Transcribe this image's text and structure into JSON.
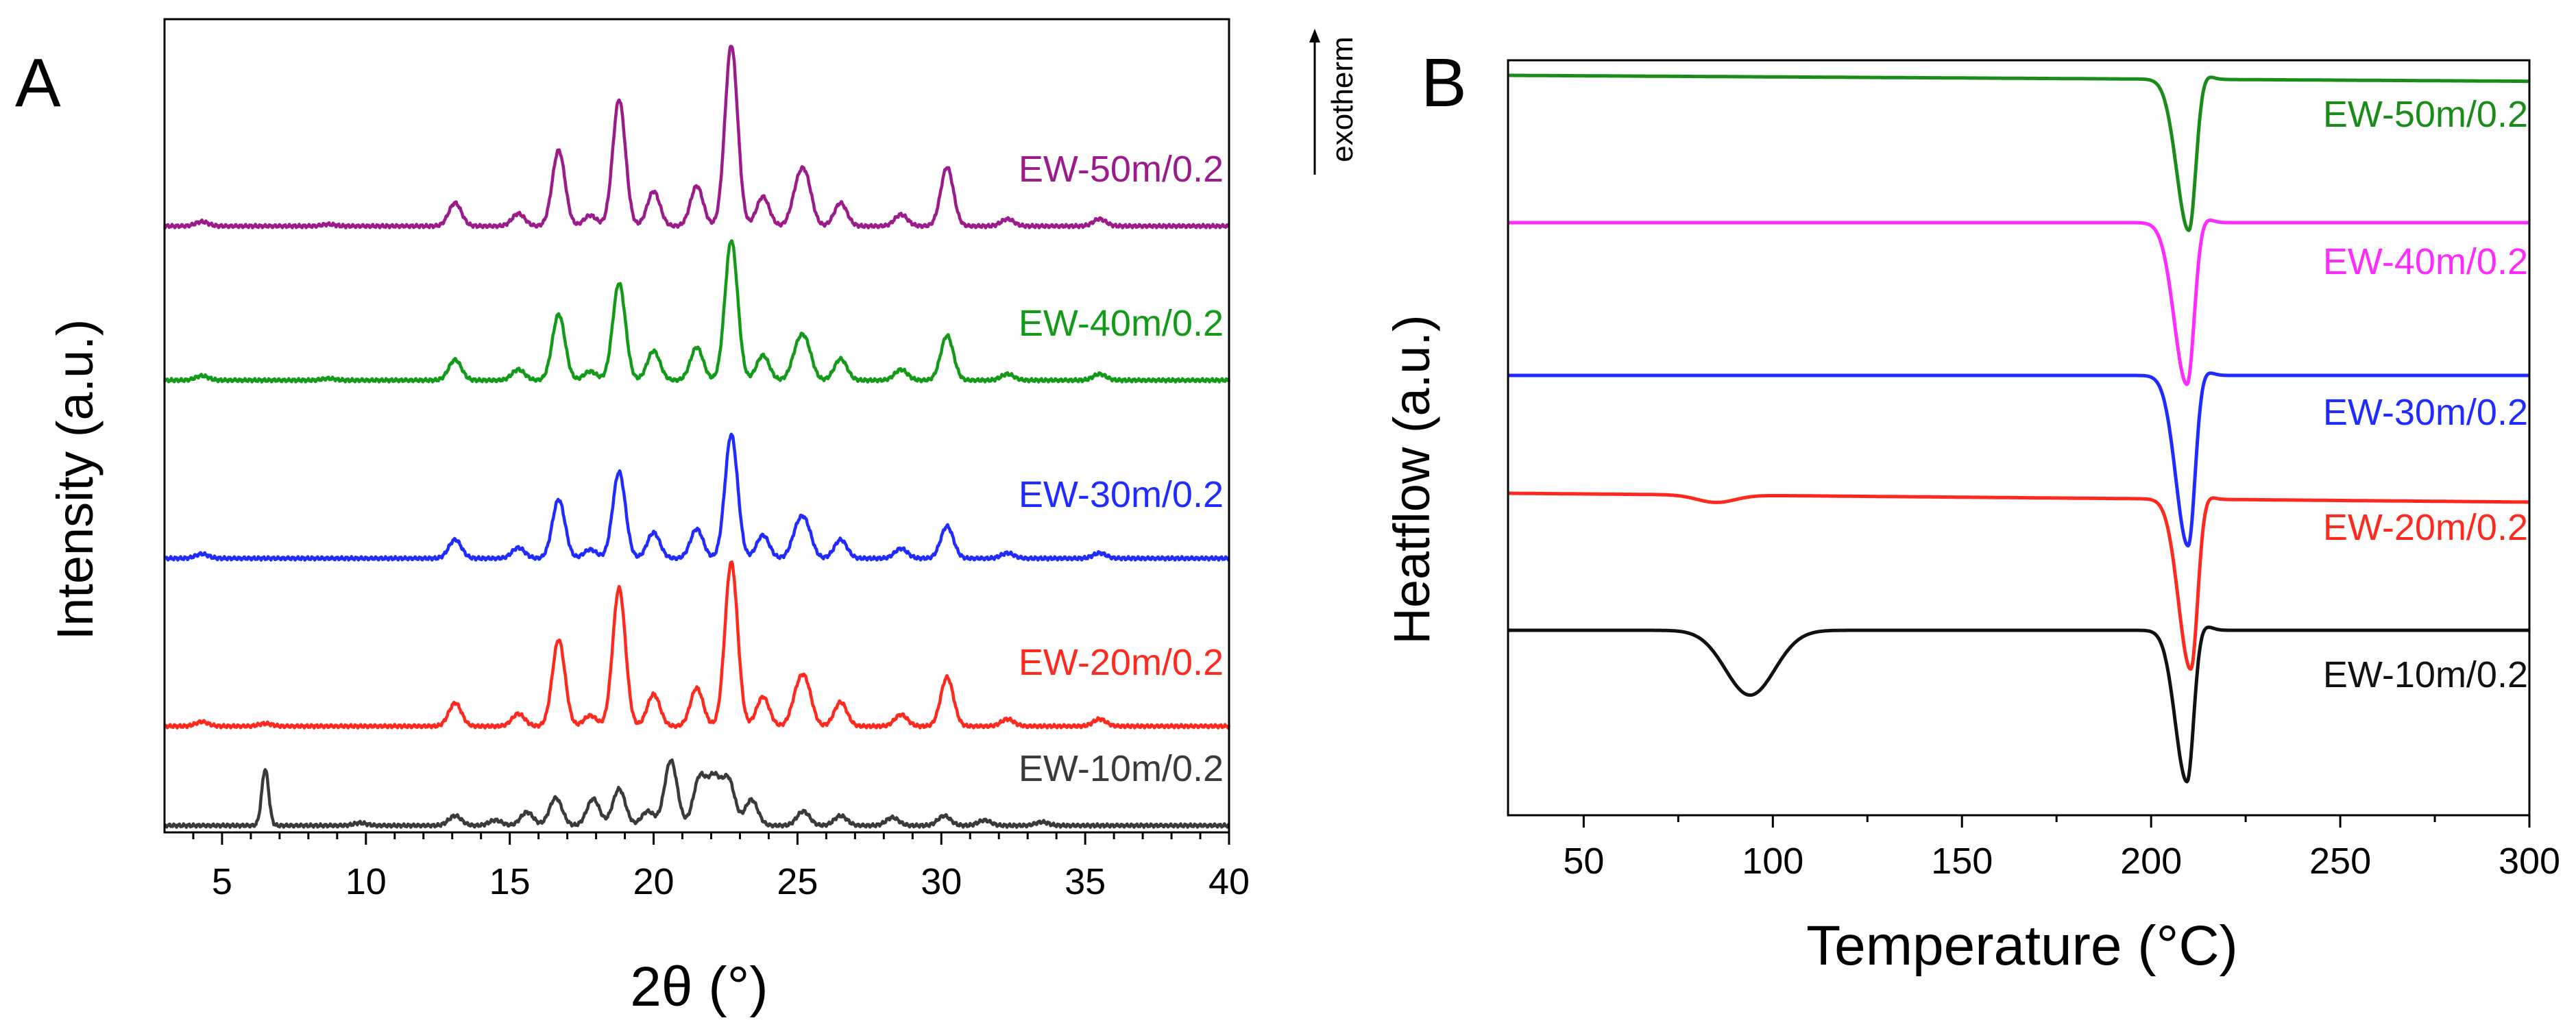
{
  "panels": {
    "A": {
      "letter": "A",
      "xlabel": "2θ (°)",
      "ylabel": "Intensity (a.u.)"
    },
    "B": {
      "letter": "B",
      "xlabel": "Temperature (°C)",
      "ylabel": "Heatflow (a.u.)",
      "direction_note": "exotherm"
    }
  },
  "chart_data": [
    {
      "panel": "A",
      "type": "line",
      "title": "",
      "xlabel": "2θ (°)",
      "ylabel": "Intensity (a.u.)",
      "xlim": [
        3,
        40
      ],
      "xticks": [
        5,
        10,
        15,
        20,
        25,
        30,
        35,
        40
      ],
      "yticks_shown": false,
      "grid": false,
      "legend": "labels placed next to each stacked trace",
      "peak_labels_2theta": [
        13.1,
        15.3,
        16.7,
        17.8,
        18.8,
        20.0,
        21.5,
        22.7,
        23.8,
        25.0,
        25.3,
        26.5,
        28.6,
        30.2,
        32.3,
        35.5
      ],
      "series": [
        {
          "name": "EW-50m/0.2",
          "color": "#9b1b8a",
          "peaks": [
            [
              4.3,
              0.05
            ],
            [
              8.7,
              0.02
            ],
            [
              13.1,
              0.26
            ],
            [
              15.3,
              0.14
            ],
            [
              16.7,
              0.85
            ],
            [
              17.8,
              0.12
            ],
            [
              18.8,
              1.42
            ],
            [
              20.0,
              0.39
            ],
            [
              21.5,
              0.45
            ],
            [
              22.7,
              2.03
            ],
            [
              23.8,
              0.33
            ],
            [
              25.0,
              0.36
            ],
            [
              25.3,
              0.46
            ],
            [
              26.5,
              0.26
            ],
            [
              28.6,
              0.13
            ],
            [
              30.2,
              0.66
            ],
            [
              32.3,
              0.08
            ],
            [
              35.5,
              0.08
            ]
          ]
        },
        {
          "name": "EW-40m/0.2",
          "color": "#139a18",
          "peaks": [
            [
              4.3,
              0.05
            ],
            [
              8.7,
              0.02
            ],
            [
              13.1,
              0.23
            ],
            [
              15.3,
              0.12
            ],
            [
              16.7,
              0.74
            ],
            [
              17.8,
              0.1
            ],
            [
              18.8,
              1.09
            ],
            [
              20.0,
              0.33
            ],
            [
              21.5,
              0.37
            ],
            [
              22.7,
              1.57
            ],
            [
              23.8,
              0.28
            ],
            [
              25.0,
              0.3
            ],
            [
              25.3,
              0.35
            ],
            [
              26.5,
              0.24
            ],
            [
              28.6,
              0.12
            ],
            [
              30.2,
              0.5
            ],
            [
              32.3,
              0.07
            ],
            [
              35.5,
              0.07
            ]
          ]
        },
        {
          "name": "EW-30m/0.2",
          "color": "#1f2bff",
          "peaks": [
            [
              4.3,
              0.05
            ],
            [
              13.1,
              0.21
            ],
            [
              15.3,
              0.12
            ],
            [
              16.7,
              0.66
            ],
            [
              17.8,
              0.1
            ],
            [
              18.8,
              0.97
            ],
            [
              20.0,
              0.29
            ],
            [
              21.5,
              0.33
            ],
            [
              22.7,
              1.39
            ],
            [
              23.8,
              0.26
            ],
            [
              25.0,
              0.28
            ],
            [
              25.3,
              0.32
            ],
            [
              26.5,
              0.21
            ],
            [
              28.6,
              0.11
            ],
            [
              30.2,
              0.36
            ],
            [
              32.3,
              0.06
            ],
            [
              35.5,
              0.06
            ]
          ]
        },
        {
          "name": "EW-20m/0.2",
          "color": "#ff2a1f",
          "peaks": [
            [
              4.3,
              0.05
            ],
            [
              6.5,
              0.03
            ],
            [
              13.1,
              0.26
            ],
            [
              15.3,
              0.14
            ],
            [
              16.7,
              0.97
            ],
            [
              17.8,
              0.12
            ],
            [
              18.8,
              1.55
            ],
            [
              20.0,
              0.36
            ],
            [
              21.5,
              0.43
            ],
            [
              22.7,
              1.84
            ],
            [
              23.8,
              0.33
            ],
            [
              25.0,
              0.32
            ],
            [
              25.3,
              0.41
            ],
            [
              26.5,
              0.27
            ],
            [
              28.6,
              0.13
            ],
            [
              30.2,
              0.55
            ],
            [
              32.3,
              0.08
            ],
            [
              35.5,
              0.08
            ]
          ]
        },
        {
          "name": "EW-10m/0.2",
          "color": "#3a3a3a",
          "peaks": [
            [
              6.5,
              0.63
            ],
            [
              9.8,
              0.03
            ],
            [
              13.1,
              0.11
            ],
            [
              14.5,
              0.06
            ],
            [
              15.6,
              0.15
            ],
            [
              16.6,
              0.31
            ],
            [
              17.9,
              0.3
            ],
            [
              18.8,
              0.41
            ],
            [
              19.8,
              0.16
            ],
            [
              20.6,
              0.73
            ],
            [
              21.6,
              0.53
            ],
            [
              22.1,
              0.51
            ],
            [
              22.6,
              0.51
            ],
            [
              23.4,
              0.29
            ],
            [
              25.2,
              0.16
            ],
            [
              26.5,
              0.11
            ],
            [
              28.3,
              0.09
            ],
            [
              30.1,
              0.11
            ],
            [
              31.5,
              0.06
            ],
            [
              33.5,
              0.04
            ]
          ]
        }
      ]
    },
    {
      "panel": "B",
      "type": "line",
      "title": "",
      "xlabel": "Temperature (°C)",
      "ylabel": "Heatflow (a.u.)",
      "xlim": [
        30,
        300
      ],
      "xticks": [
        50,
        100,
        150,
        200,
        250,
        300
      ],
      "yticks_shown": false,
      "grid": false,
      "legend": "labels placed next to each stacked trace",
      "melting_peak_C": 210,
      "series": [
        {
          "name": "EW-50m/0.2",
          "color": "#1a8c1a",
          "baseline_start": 0.0,
          "baseline_end": -0.04,
          "events": [
            [
              210,
              1.03,
              2.4
            ]
          ]
        },
        {
          "name": "EW-40m/0.2",
          "color": "#ff2aff",
          "baseline_start": 0.0,
          "baseline_end": 0.0,
          "events": [
            [
              209.5,
              1.1,
              2.5
            ]
          ]
        },
        {
          "name": "EW-30m/0.2",
          "color": "#1f2bff",
          "baseline_start": 0.0,
          "baseline_end": 0.0,
          "events": [
            [
              209.8,
              1.16,
              2.4
            ]
          ]
        },
        {
          "name": "EW-20m/0.2",
          "color": "#ff2a1f",
          "baseline_start": 0.0,
          "baseline_end": -0.06,
          "events": [
            [
              210.5,
              1.16,
              2.4
            ],
            [
              85,
              0.05,
              5
            ]
          ]
        },
        {
          "name": "EW-10m/0.2",
          "color": "#111111",
          "baseline_start": 0.0,
          "baseline_end": 0.0,
          "events": [
            [
              209.5,
              1.03,
              2.3
            ],
            [
              94,
              0.44,
              6.5
            ]
          ]
        }
      ]
    }
  ]
}
